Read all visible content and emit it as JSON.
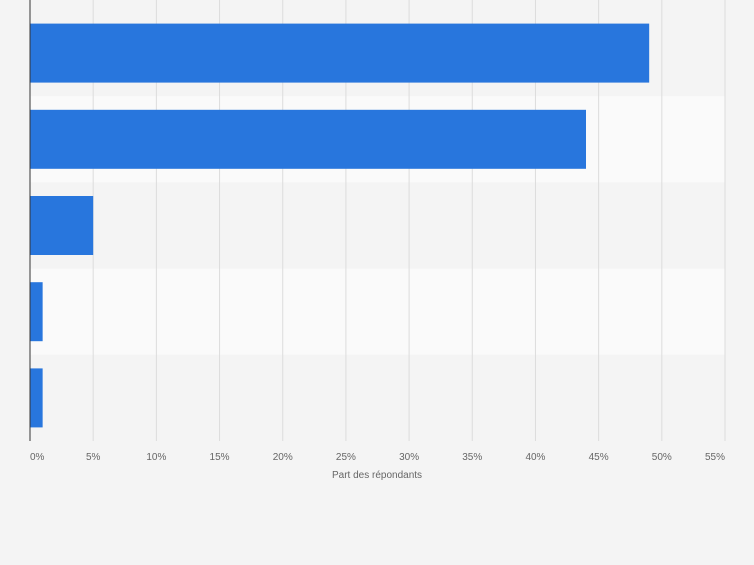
{
  "chart_data": {
    "type": "bar",
    "orientation": "horizontal",
    "categories": [
      "",
      "",
      "",
      "",
      ""
    ],
    "values": [
      49,
      44,
      5,
      1,
      1
    ],
    "xlabel": "Part des répondants",
    "ylabel": "",
    "xlim": [
      0,
      55
    ],
    "x_ticks": [
      0,
      5,
      10,
      15,
      20,
      25,
      30,
      35,
      40,
      45,
      50,
      55
    ],
    "x_tick_labels": [
      "0%",
      "5%",
      "10%",
      "15%",
      "20%",
      "25%",
      "30%",
      "35%",
      "40%",
      "45%",
      "50%",
      "55%"
    ],
    "grid": true,
    "legend": "none",
    "colors": {
      "bar": "#2876dd",
      "background": "#f4f4f4",
      "band_light": "#fafafa",
      "band_dark": "#f4f4f4",
      "gridline": "#dcdcdc",
      "axis": "#333333",
      "tick_text": "#666666"
    }
  }
}
